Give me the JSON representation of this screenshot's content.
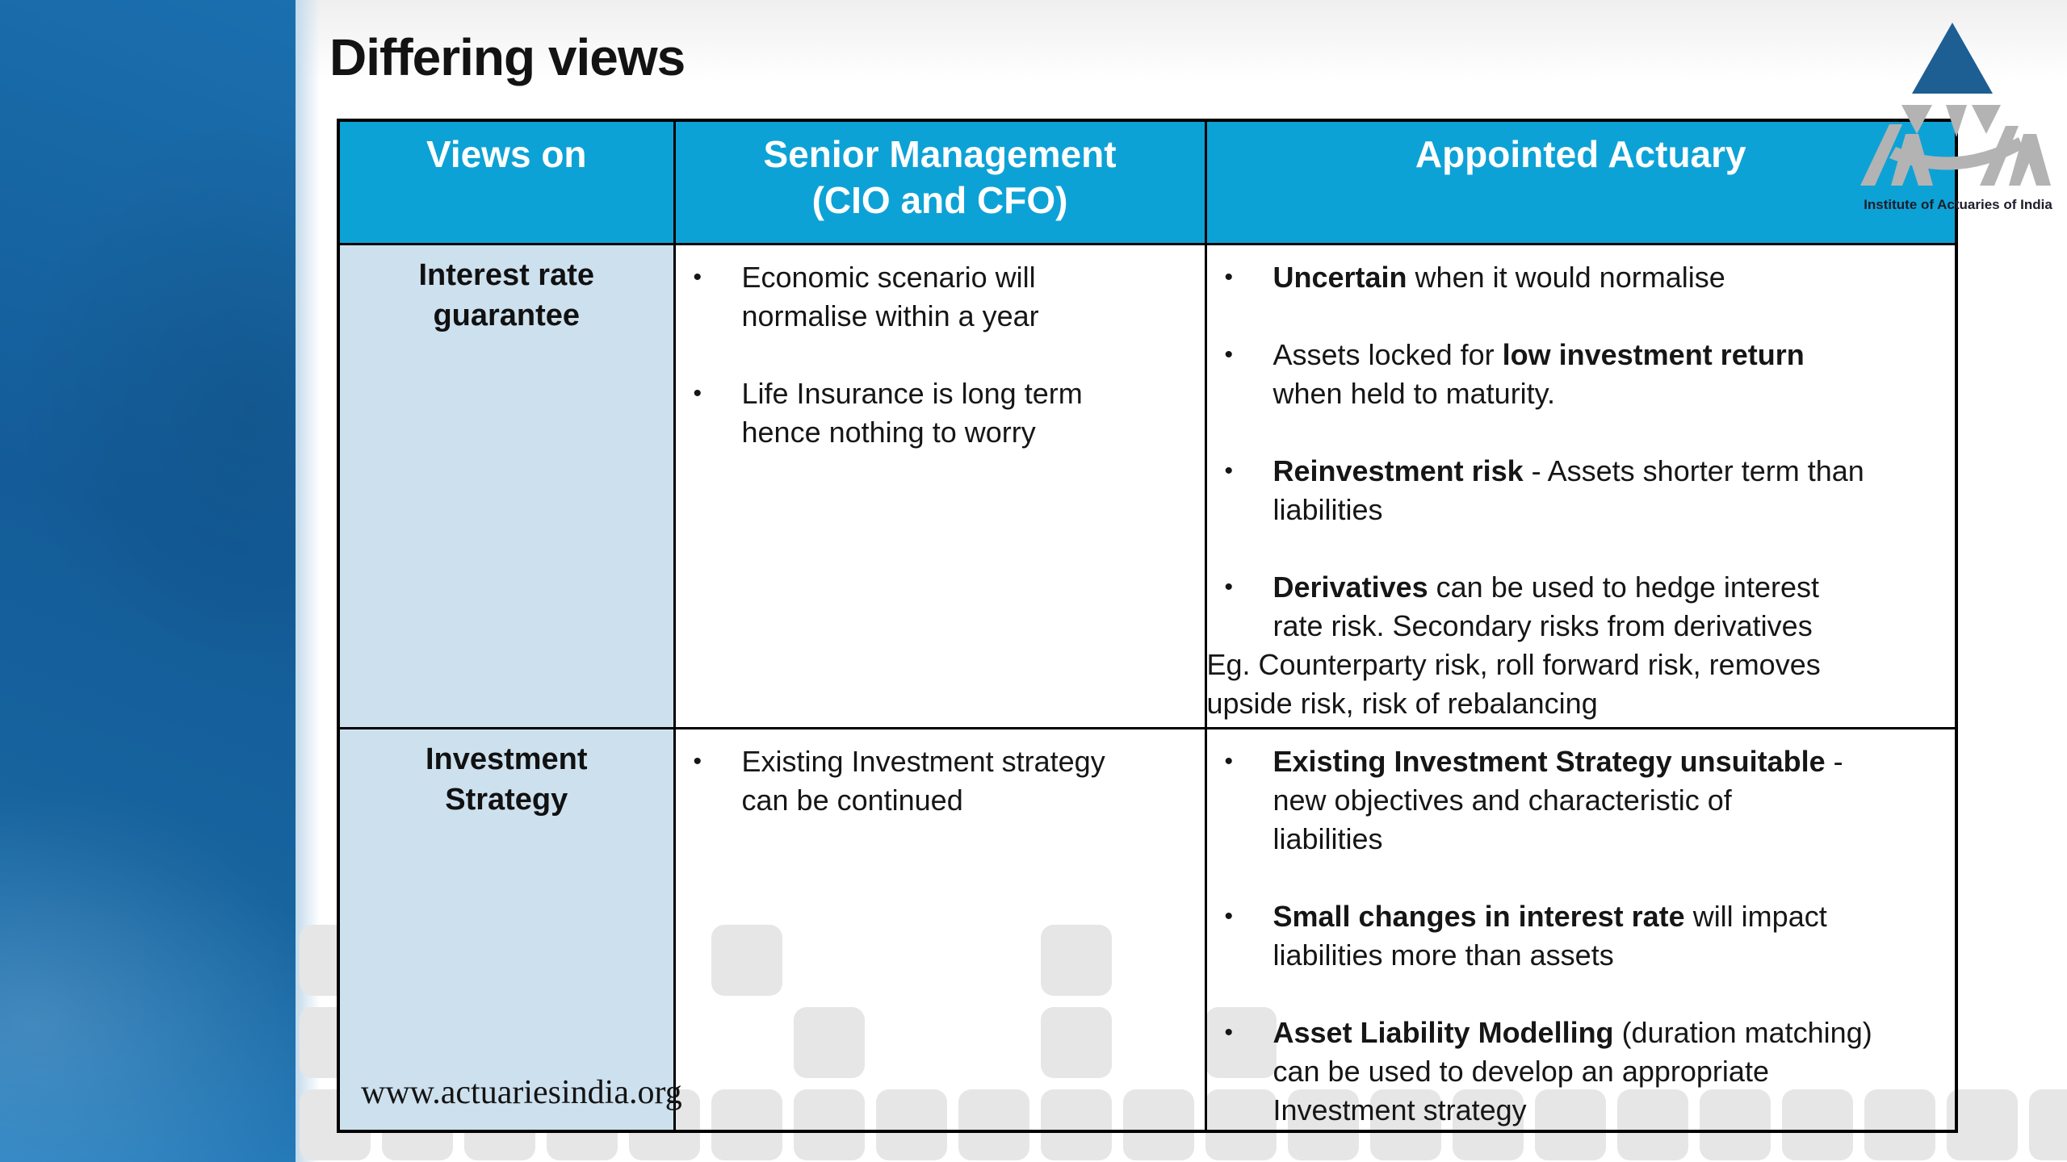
{
  "slide": {
    "title": "Differing views"
  },
  "logo": {
    "caption": "Institute of Actuaries of India"
  },
  "footer": {
    "url": "www.actuariesindia.org"
  },
  "colors": {
    "header_bg": "#0da2d6",
    "row_label_bg": "#cde0ee",
    "sidebar_blue": "#15639f",
    "pattern_square": "#e6e6e6",
    "border": "#000000",
    "logo_triangle": "#1d5e93",
    "logo_gray": "#b3b3b3"
  },
  "table": {
    "headers": [
      {
        "key": "views-on",
        "label": "Views on"
      },
      {
        "key": "senior-management",
        "label": "Senior Management\n(CIO and CFO)"
      },
      {
        "key": "appointed-actuary",
        "label": "Appointed Actuary"
      }
    ],
    "rows": [
      {
        "views_on": "Interest rate\nguarantee",
        "senior_management": {
          "bullets": [
            [
              {
                "text": "Economic scenario will\nnormalise within a year",
                "bold": false
              }
            ],
            [
              {
                "text": "Life Insurance is long term\nhence nothing to worry",
                "bold": false
              }
            ]
          ],
          "note": ""
        },
        "appointed_actuary": {
          "bullets": [
            [
              {
                "text": "Uncertain",
                "bold": true
              },
              {
                "text": " when it would normalise",
                "bold": false
              }
            ],
            [
              {
                "text": "Assets locked for ",
                "bold": false
              },
              {
                "text": "low investment return",
                "bold": true
              },
              {
                "text": "\nwhen held to maturity.",
                "bold": false
              }
            ],
            [
              {
                "text": "Reinvestment risk",
                "bold": true
              },
              {
                "text": " - Assets shorter term than\nliabilities",
                "bold": false
              }
            ],
            [
              {
                "text": "Derivatives",
                "bold": true
              },
              {
                "text": " can be used to hedge interest\nrate risk. Secondary risks from derivatives",
                "bold": false
              }
            ]
          ],
          "note": "Eg. Counterparty risk, roll forward risk, removes\nupside risk, risk of rebalancing"
        }
      },
      {
        "views_on": "Investment\nStrategy",
        "senior_management": {
          "bullets": [
            [
              {
                "text": "Existing Investment strategy\ncan be continued",
                "bold": false
              }
            ]
          ],
          "note": ""
        },
        "appointed_actuary": {
          "bullets": [
            [
              {
                "text": "Existing Investment Strategy unsuitable",
                "bold": true
              },
              {
                "text": " -\nnew objectives and characteristic of\nliabilities",
                "bold": false
              }
            ],
            [
              {
                "text": "Small changes in interest rate",
                "bold": true
              },
              {
                "text": " will impact\nliabilities more than assets",
                "bold": false
              }
            ],
            [
              {
                "text": "Asset Liability Modelling",
                "bold": true
              },
              {
                "text": " (duration matching)\ncan be used to develop an appropriate\nInvestment strategy",
                "bold": false
              }
            ]
          ],
          "note": ""
        }
      }
    ]
  }
}
